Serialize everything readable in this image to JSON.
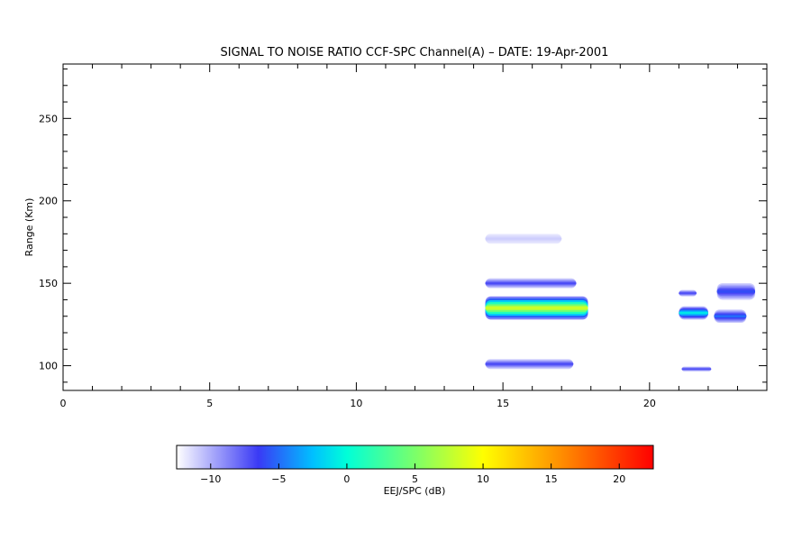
{
  "chart_data": {
    "type": "heatmap",
    "title": "SIGNAL TO NOISE RATIO CCF-SPC Channel(A) – DATE: 19-Apr-2001",
    "xlabel": "",
    "ylabel": "Range (Km)",
    "xlim": [
      0,
      24
    ],
    "ylim": [
      85,
      283
    ],
    "x_ticks": [
      0,
      5,
      10,
      15,
      20
    ],
    "y_ticks": [
      100,
      150,
      200,
      250
    ],
    "x_tick_labels": [
      "0",
      "5",
      "10",
      "15",
      "20"
    ],
    "y_tick_labels": [
      "100",
      "150",
      "200",
      "250"
    ],
    "grid": false,
    "colorbar": {
      "label": "EEJ/SPC (dB)",
      "range": [
        -12.5,
        22.5
      ],
      "ticks": [
        -10,
        -5,
        0,
        5,
        10,
        15,
        20
      ],
      "tick_labels": [
        "−10",
        "−5",
        "0",
        "5",
        "10",
        "15",
        "20"
      ],
      "stops": [
        {
          "value": -12.5,
          "color": "#ffffff"
        },
        {
          "value": -6.5,
          "color": "#3a3af5"
        },
        {
          "value": -2.5,
          "color": "#00c0ff"
        },
        {
          "value": 0,
          "color": "#00ffd8"
        },
        {
          "value": 5,
          "color": "#7bff6a"
        },
        {
          "value": 10,
          "color": "#ffff00"
        },
        {
          "value": 16,
          "color": "#ff8800"
        },
        {
          "value": 22.5,
          "color": "#ff0000"
        }
      ]
    },
    "features": [
      {
        "name": "upper echo band",
        "x": [
          14.4,
          17.9
        ],
        "y_center": 135,
        "y_half_width": 7,
        "peak_db": 8
      },
      {
        "name": "upper echo band top edge",
        "x": [
          14.4,
          17.5
        ],
        "y_center": 150,
        "y_half_width": 3,
        "peak_db": -7
      },
      {
        "name": "lower echo layer",
        "x": [
          14.4,
          17.4
        ],
        "y_center": 101,
        "y_half_width": 3,
        "peak_db": -7
      },
      {
        "name": "faint layer",
        "x": [
          14.4,
          17.0
        ],
        "y_center": 177,
        "y_half_width": 3,
        "peak_db": -11
      },
      {
        "name": "evening patch",
        "x": [
          21.0,
          22.0
        ],
        "y_center": 132,
        "y_half_width": 4,
        "peak_db": -1
      },
      {
        "name": "evening patch",
        "x": [
          22.2,
          23.3
        ],
        "y_center": 130,
        "y_half_width": 4,
        "peak_db": -5
      },
      {
        "name": "evening patch",
        "x": [
          22.3,
          23.6
        ],
        "y_center": 145,
        "y_half_width": 5,
        "peak_db": -6
      },
      {
        "name": "evening patch",
        "x": [
          21.0,
          21.6
        ],
        "y_center": 144,
        "y_half_width": 2,
        "peak_db": -7
      },
      {
        "name": "evening patch",
        "x": [
          21.1,
          22.1
        ],
        "y_center": 98,
        "y_half_width": 1.5,
        "peak_db": -7
      }
    ]
  }
}
